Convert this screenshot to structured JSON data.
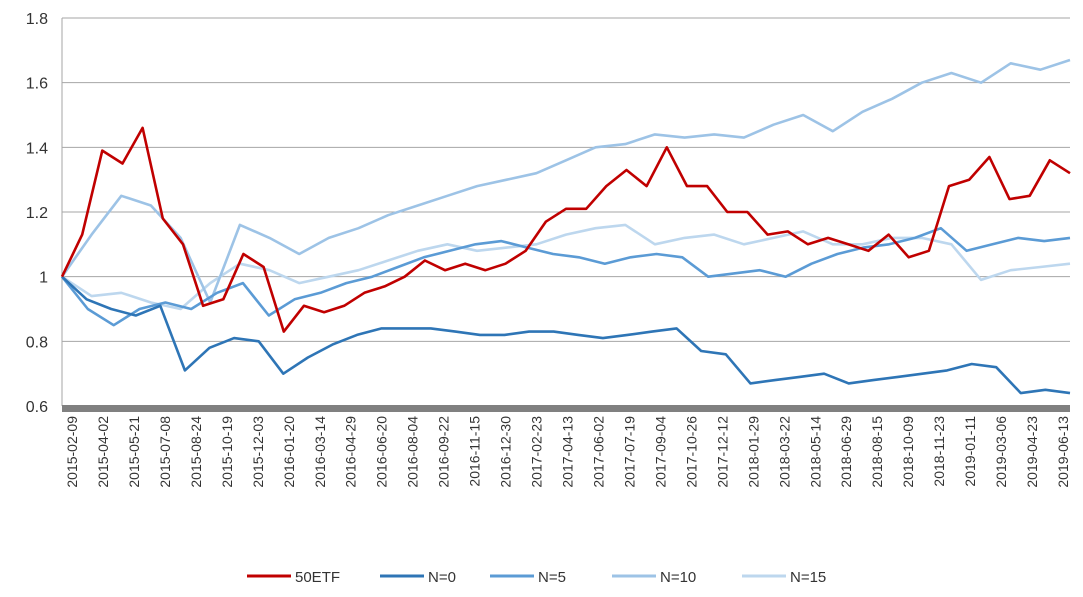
{
  "chart_data": {
    "type": "line",
    "title": "",
    "xlabel": "",
    "ylabel": "",
    "ylim": [
      0.6,
      1.8
    ],
    "yticks": [
      "0.6",
      "0.8",
      "1",
      "1.2",
      "1.4",
      "1.6",
      "1.8"
    ],
    "grid": "horizontal",
    "legend_position": "bottom",
    "x_tick_labels": [
      "2015-02-09",
      "2015-04-02",
      "2015-05-21",
      "2015-07-08",
      "2015-08-24",
      "2015-10-19",
      "2015-12-03",
      "2016-01-20",
      "2016-03-14",
      "2016-04-29",
      "2016-06-20",
      "2016-08-04",
      "2016-09-22",
      "2016-11-15",
      "2016-12-30",
      "2017-02-23",
      "2017-04-13",
      "2017-06-02",
      "2017-07-19",
      "2017-09-04",
      "2017-10-26",
      "2017-12-12",
      "2018-01-29",
      "2018-03-22",
      "2018-05-14",
      "2018-06-29",
      "2018-08-15",
      "2018-10-09",
      "2018-11-23",
      "2019-01-11",
      "2019-03-06",
      "2019-04-23",
      "2019-06-13"
    ],
    "series": [
      {
        "name": "50ETF",
        "color": "#c00000",
        "values": [
          1.0,
          1.13,
          1.39,
          1.35,
          1.46,
          1.18,
          1.1,
          0.91,
          0.93,
          1.07,
          1.03,
          0.83,
          0.91,
          0.89,
          0.91,
          0.95,
          0.97,
          1.0,
          1.05,
          1.02,
          1.04,
          1.02,
          1.04,
          1.08,
          1.17,
          1.21,
          1.21,
          1.28,
          1.33,
          1.28,
          1.4,
          1.28,
          1.28,
          1.2,
          1.2,
          1.13,
          1.14,
          1.1,
          1.12,
          1.1,
          1.08,
          1.13,
          1.06,
          1.08,
          1.28,
          1.3,
          1.37,
          1.24,
          1.25,
          1.36,
          1.32
        ]
      },
      {
        "name": "N=0",
        "color": "#2e75b6",
        "values": [
          1.0,
          0.93,
          0.9,
          0.88,
          0.91,
          0.71,
          0.78,
          0.81,
          0.8,
          0.7,
          0.75,
          0.79,
          0.82,
          0.84,
          0.84,
          0.84,
          0.83,
          0.82,
          0.82,
          0.83,
          0.83,
          0.82,
          0.81,
          0.82,
          0.83,
          0.84,
          0.77,
          0.76,
          0.67,
          0.68,
          0.69,
          0.7,
          0.67,
          0.68,
          0.69,
          0.7,
          0.71,
          0.73,
          0.72,
          0.64,
          0.65,
          0.64
        ]
      },
      {
        "name": "N=5",
        "color": "#5b9bd5",
        "values": [
          1.0,
          0.9,
          0.85,
          0.9,
          0.92,
          0.9,
          0.95,
          0.98,
          0.88,
          0.93,
          0.95,
          0.98,
          1.0,
          1.03,
          1.06,
          1.08,
          1.1,
          1.11,
          1.09,
          1.07,
          1.06,
          1.04,
          1.06,
          1.07,
          1.06,
          1.0,
          1.01,
          1.02,
          1.0,
          1.04,
          1.07,
          1.09,
          1.1,
          1.12,
          1.15,
          1.08,
          1.1,
          1.12,
          1.11,
          1.12
        ]
      },
      {
        "name": "N=10",
        "color": "#9dc3e6",
        "values": [
          1.0,
          1.13,
          1.25,
          1.22,
          1.12,
          0.92,
          1.16,
          1.12,
          1.07,
          1.12,
          1.15,
          1.19,
          1.22,
          1.25,
          1.28,
          1.3,
          1.32,
          1.36,
          1.4,
          1.41,
          1.44,
          1.43,
          1.44,
          1.43,
          1.47,
          1.5,
          1.45,
          1.51,
          1.55,
          1.6,
          1.63,
          1.6,
          1.66,
          1.64,
          1.67
        ]
      },
      {
        "name": "N=15",
        "color": "#bdd7ee",
        "values": [
          1.0,
          0.94,
          0.95,
          0.92,
          0.9,
          0.98,
          1.04,
          1.02,
          0.98,
          1.0,
          1.02,
          1.05,
          1.08,
          1.1,
          1.08,
          1.09,
          1.1,
          1.13,
          1.15,
          1.16,
          1.1,
          1.12,
          1.13,
          1.1,
          1.12,
          1.14,
          1.1,
          1.1,
          1.12,
          1.12,
          1.1,
          0.99,
          1.02,
          1.03,
          1.04
        ]
      }
    ]
  }
}
